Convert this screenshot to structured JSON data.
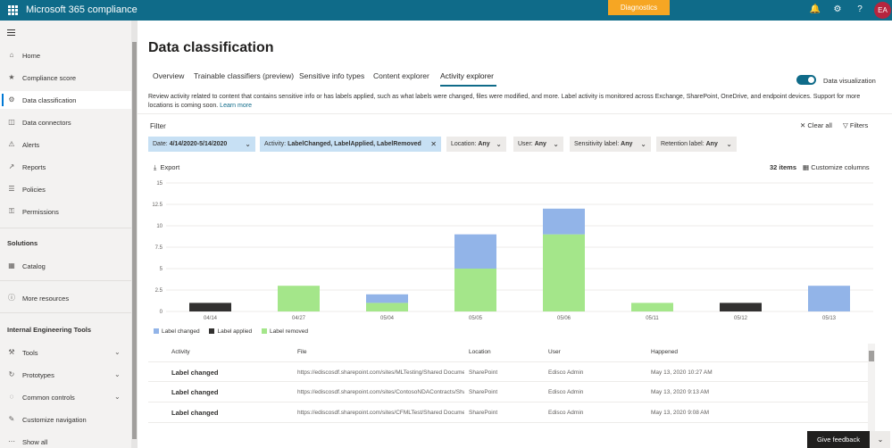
{
  "app": {
    "title": "Microsoft 365 compliance",
    "diagnostics": "Diagnostics",
    "avatar": "EA"
  },
  "sidebar": {
    "items": [
      {
        "label": "Home",
        "icon": "home-icon"
      },
      {
        "label": "Compliance score",
        "icon": "trophy-icon"
      },
      {
        "label": "Data classification",
        "icon": "classification-icon"
      },
      {
        "label": "Data connectors",
        "icon": "connector-icon"
      },
      {
        "label": "Alerts",
        "icon": "alert-icon"
      },
      {
        "label": "Reports",
        "icon": "chart-icon"
      },
      {
        "label": "Policies",
        "icon": "policy-icon"
      },
      {
        "label": "Permissions",
        "icon": "key-icon"
      }
    ],
    "solutions_heading": "Solutions",
    "catalog": "Catalog",
    "more_resources": "More resources",
    "internal_heading": "Internal Engineering Tools",
    "tools": [
      {
        "label": "Tools"
      },
      {
        "label": "Prototypes"
      },
      {
        "label": "Common controls"
      }
    ],
    "customize_navigation": "Customize navigation",
    "show_all": "Show all"
  },
  "page": {
    "title": "Data classification",
    "tabs": [
      "Overview",
      "Trainable classifiers (preview)",
      "Sensitive info types",
      "Content explorer",
      "Activity explorer"
    ],
    "data_visualization": "Data visualization",
    "description": "Review activity related to content that contains sensitive info or has labels applied, such as what labels were changed, files were modified, and more. Label activity is monitored across Exchange, SharePoint, OneDrive, and endpoint devices. Support for more locations is coming soon.",
    "learn_more": "Learn more"
  },
  "filters": {
    "heading": "Filter",
    "clear_all": "Clear all",
    "filters": "Filters",
    "date": {
      "label": "Date:",
      "value": "4/14/2020-5/14/2020"
    },
    "activity": {
      "label": "Activity:",
      "value": "LabelChanged, LabelApplied, LabelRemoved"
    },
    "location": {
      "label": "Location:",
      "value": "Any"
    },
    "user": {
      "label": "User:",
      "value": "Any"
    },
    "sensitivity": {
      "label": "Sensitivity label:",
      "value": "Any"
    },
    "retention": {
      "label": "Retention label:",
      "value": "Any"
    }
  },
  "toolbar": {
    "export": "Export",
    "items_count": "32 items",
    "customize_columns": "Customize columns"
  },
  "chart_data": {
    "type": "bar",
    "stacked": true,
    "categories": [
      "04/14",
      "04/27",
      "05/04",
      "05/05",
      "05/06",
      "05/11",
      "05/12",
      "05/13"
    ],
    "series": [
      {
        "name": "Label applied",
        "color": "#323130",
        "values": [
          1,
          0,
          0,
          0,
          0,
          0,
          1,
          0
        ]
      },
      {
        "name": "Label removed",
        "color": "#a4e68a",
        "values": [
          0,
          3,
          1,
          5,
          9,
          1,
          0,
          0
        ]
      },
      {
        "name": "Label changed",
        "color": "#92b4e8",
        "values": [
          0,
          0,
          1,
          4,
          3,
          0,
          0,
          3
        ]
      }
    ],
    "legend_order": [
      "Label changed",
      "Label applied",
      "Label removed"
    ],
    "yticks": [
      "0",
      "2.5",
      "5",
      "7.5",
      "10",
      "12.5",
      "15"
    ],
    "ylim": [
      0,
      15
    ],
    "grid": true,
    "legend_position": "bottom-left"
  },
  "table": {
    "headers": [
      "Activity",
      "File",
      "Location",
      "User",
      "Happened"
    ],
    "rows": [
      {
        "activity": "Label changed",
        "file": "https://ediscosdf.sharepoint.com/sites/MLTesting/Shared Docume...",
        "location": "SharePoint",
        "user": "Edisco Admin",
        "happened": "May 13, 2020 10:27 AM"
      },
      {
        "activity": "Label changed",
        "file": "https://ediscosdf.sharepoint.com/sites/ContosoNDAContracts/Sha...",
        "location": "SharePoint",
        "user": "Edisco Admin",
        "happened": "May 13, 2020 9:13 AM"
      },
      {
        "activity": "Label changed",
        "file": "https://ediscosdf.sharepoint.com/sites/CFMLTest/Shared Documen...",
        "location": "SharePoint",
        "user": "Edisco Admin",
        "happened": "May 13, 2020 9:08 AM"
      }
    ]
  },
  "feedback": "Give feedback"
}
